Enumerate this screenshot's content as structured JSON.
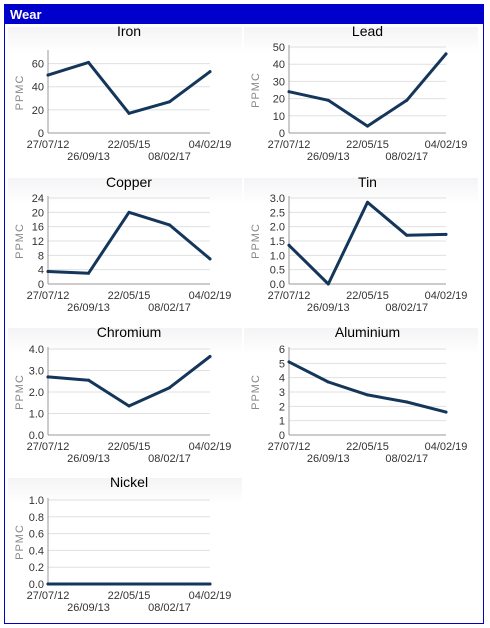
{
  "section_title": "Wear",
  "colors": {
    "header": "#0000cc",
    "line": "#14365a",
    "grid": "#e0e0e0",
    "axis": "#999999"
  },
  "chart_data": [
    {
      "type": "line",
      "title": "Iron",
      "ylabel": "PPMC",
      "x": [
        "27/07/12",
        "26/09/13",
        "22/05/15",
        "08/02/17",
        "04/02/19"
      ],
      "values": [
        50,
        61,
        17,
        27,
        53
      ],
      "ylim": [
        0,
        70
      ],
      "yticks": [
        "0",
        "20",
        "40",
        "60"
      ],
      "grid": true
    },
    {
      "type": "line",
      "title": "Lead",
      "ylabel": "PPMC",
      "x": [
        "27/07/12",
        "26/09/13",
        "22/05/15",
        "08/02/17",
        "04/02/19"
      ],
      "values": [
        24,
        19,
        4,
        19,
        46
      ],
      "ylim": [
        0,
        50
      ],
      "yticks": [
        "0",
        "10",
        "20",
        "30",
        "40",
        "50"
      ],
      "grid": true
    },
    {
      "type": "line",
      "title": "Copper",
      "ylabel": "PPMC",
      "x": [
        "27/07/12",
        "26/09/13",
        "22/05/15",
        "08/02/17",
        "04/02/19"
      ],
      "values": [
        3.5,
        3,
        20,
        16.5,
        7
      ],
      "ylim": [
        0,
        24
      ],
      "yticks": [
        "0",
        "4",
        "8",
        "12",
        "16",
        "20",
        "24"
      ],
      "grid": true
    },
    {
      "type": "line",
      "title": "Tin",
      "ylabel": "PPMC",
      "x": [
        "27/07/12",
        "26/09/13",
        "22/05/15",
        "08/02/17",
        "04/02/19"
      ],
      "values": [
        1.35,
        0,
        2.85,
        1.7,
        1.73
      ],
      "ylim": [
        0,
        3
      ],
      "yticks": [
        "0.0",
        "0.5",
        "1.0",
        "1.5",
        "2.0",
        "2.5",
        "3.0"
      ],
      "grid": true
    },
    {
      "type": "line",
      "title": "Chromium",
      "ylabel": "PPMC",
      "x": [
        "27/07/12",
        "26/09/13",
        "22/05/15",
        "08/02/17",
        "04/02/19"
      ],
      "values": [
        2.7,
        2.55,
        1.35,
        2.2,
        3.65
      ],
      "ylim": [
        0,
        4
      ],
      "yticks": [
        "0.0",
        "1.0",
        "2.0",
        "3.0",
        "4.0"
      ],
      "grid": true
    },
    {
      "type": "line",
      "title": "Aluminium",
      "ylabel": "PPMC",
      "x": [
        "27/07/12",
        "26/09/13",
        "22/05/15",
        "08/02/17",
        "04/02/19"
      ],
      "values": [
        5.1,
        3.7,
        2.8,
        2.3,
        1.6
      ],
      "ylim": [
        0,
        6
      ],
      "yticks": [
        "0",
        "1",
        "2",
        "3",
        "4",
        "5",
        "6"
      ],
      "grid": true
    },
    {
      "type": "line",
      "title": "Nickel",
      "ylabel": "PPMC",
      "x": [
        "27/07/12",
        "26/09/13",
        "22/05/15",
        "08/02/17",
        "04/02/19"
      ],
      "values": [
        0,
        0,
        0,
        0,
        0
      ],
      "ylim": [
        0,
        1
      ],
      "yticks": [
        "0.0",
        "0.2",
        "0.4",
        "0.6",
        "0.8",
        "1.0"
      ],
      "grid": true
    }
  ]
}
